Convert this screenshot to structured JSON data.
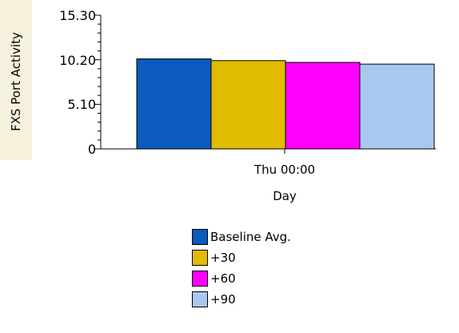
{
  "chart_data": {
    "type": "bar",
    "title": "",
    "ylabel": "FXS Port Activity",
    "xlabel": "Day",
    "categories": [
      "Thu 00:00"
    ],
    "yticks": [
      "0",
      "5.10",
      "10.20",
      "15.30"
    ],
    "ylim": [
      0,
      15.3
    ],
    "series": [
      {
        "name": "Baseline Avg.",
        "values": [
          10.3
        ],
        "color": "#0a5bbd"
      },
      {
        "name": "+30",
        "values": [
          10.1
        ],
        "color": "#e0bb00"
      },
      {
        "name": "+60",
        "values": [
          9.9
        ],
        "color": "#ff00ff"
      },
      {
        "name": "+90",
        "values": [
          9.7
        ],
        "color": "#a9c8f0"
      }
    ],
    "grid": false,
    "legend_position": "bottom"
  }
}
